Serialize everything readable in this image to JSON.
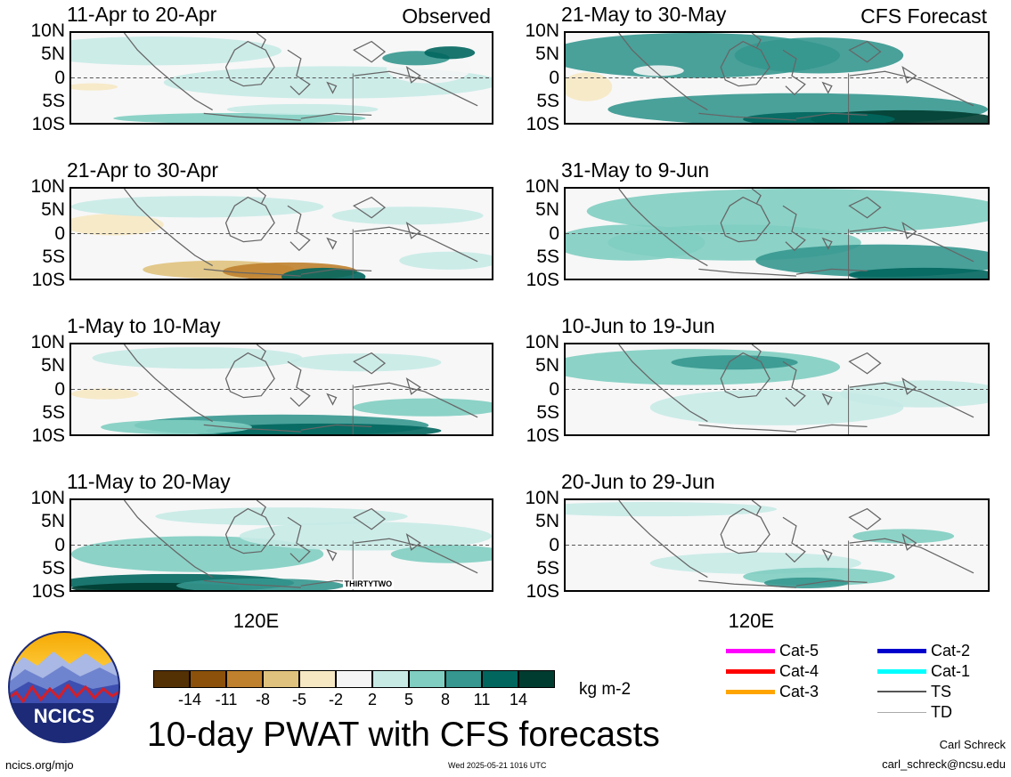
{
  "header": {
    "observed_label": "Observed",
    "forecast_label": "CFS Forecast"
  },
  "lat_labels": [
    "10N",
    "5N",
    "0",
    "5S",
    "10S"
  ],
  "lon_label": "120E",
  "panels": [
    {
      "title": "11-Apr to 20-Apr",
      "column": "observed"
    },
    {
      "title": "21-Apr to 30-Apr",
      "column": "observed"
    },
    {
      "title": "1-May to 10-May",
      "column": "observed"
    },
    {
      "title": "11-May to 20-May",
      "column": "observed",
      "annotation": "THIRTYTWO"
    },
    {
      "title": "21-May to 30-May",
      "column": "forecast"
    },
    {
      "title": "31-May to 9-Jun",
      "column": "forecast"
    },
    {
      "title": "10-Jun to 19-Jun",
      "column": "forecast"
    },
    {
      "title": "20-Jun to 29-Jun",
      "column": "forecast"
    }
  ],
  "colorbar": {
    "tick_labels": [
      "-14",
      "-11",
      "-8",
      "-5",
      "-2",
      "2",
      "5",
      "8",
      "11",
      "14"
    ],
    "colors": [
      "#543005",
      "#8c510a",
      "#bf812d",
      "#dfc27d",
      "#f6e8c3",
      "#f5f5f5",
      "#c7eae5",
      "#80cdc1",
      "#35978f",
      "#01665e",
      "#003c30"
    ],
    "units": "kg m-2"
  },
  "title": "10-day PWAT with CFS forecasts",
  "legend": [
    {
      "label": "Cat-5",
      "color": "#ff00ff"
    },
    {
      "label": "Cat-4",
      "color": "#ff0000"
    },
    {
      "label": "Cat-3",
      "color": "#ffa500"
    },
    {
      "label": "Cat-2",
      "color": "#0000cd"
    },
    {
      "label": "Cat-1",
      "color": "#00ffff"
    },
    {
      "label": "TS",
      "color": "#555555"
    },
    {
      "label": "TD",
      "color": "#aaaaaa"
    }
  ],
  "logo": {
    "text": "NCICS"
  },
  "footer": {
    "url": "ncics.org/mjo",
    "timestamp": "Wed 2025-05-21 1016 UTC",
    "author": "Carl Schreck",
    "email": "carl_schreck@ncsu.edu"
  },
  "chart_data": {
    "type": "heatmap",
    "title": "10-day PWAT with CFS forecasts",
    "variable": "precipitable water anomaly",
    "units": "kg m-2",
    "levels": [
      -14,
      -11,
      -8,
      -5,
      -2,
      2,
      5,
      8,
      11,
      14
    ],
    "y_ticks": [
      "10N",
      "5N",
      "0",
      "5S",
      "10S"
    ],
    "x_ticks": [
      "120E"
    ],
    "ylim": [
      -10,
      10
    ]
  }
}
